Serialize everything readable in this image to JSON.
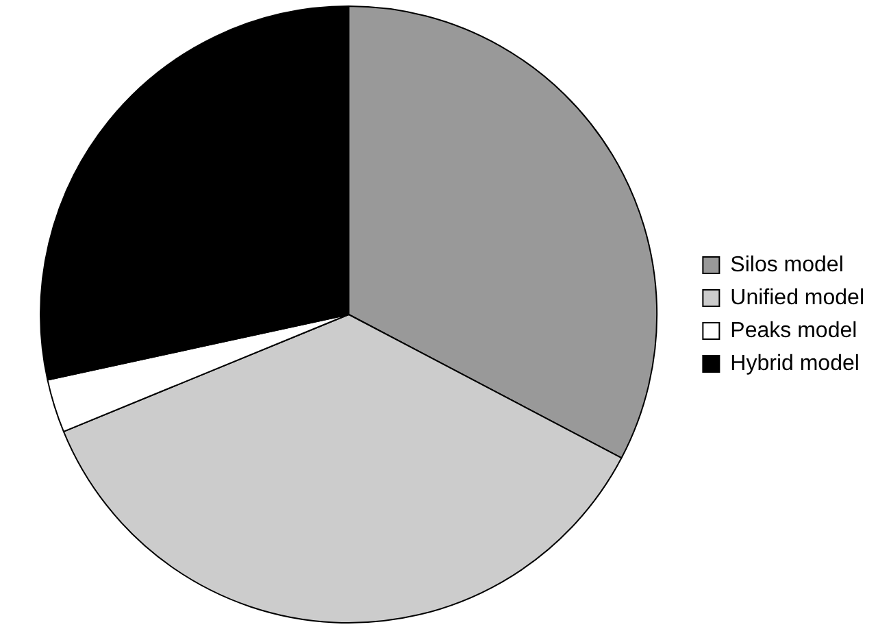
{
  "chart_data": {
    "type": "pie",
    "categories": [
      "Silos model",
      "Unified model",
      "Peaks model",
      "Hybrid model"
    ],
    "values": [
      32.7,
      36.1,
      2.8,
      28.4
    ],
    "colors": [
      "#999999",
      "#cccccc",
      "#ffffff",
      "#000000"
    ],
    "legend": "right"
  }
}
